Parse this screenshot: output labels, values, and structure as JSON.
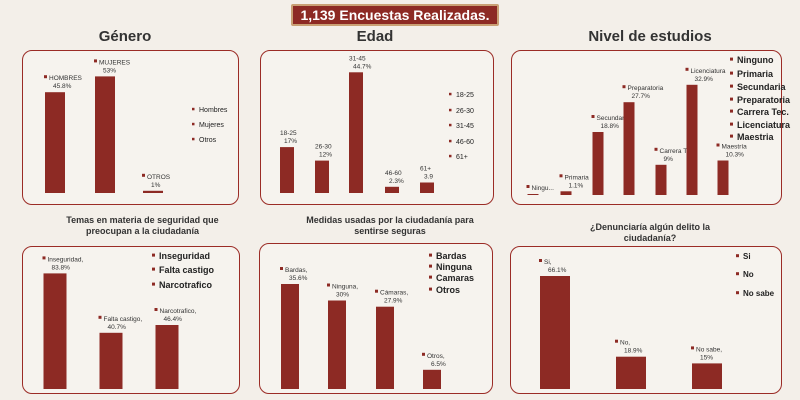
{
  "banner": "1,139 Encuestas Realizadas.",
  "titles": {
    "genero": "Género",
    "edad": "Edad",
    "estudios": "Nivel de estudios",
    "temas": "Temas en materia de seguridad que preocupan a la ciudadanía",
    "medidas": "Medidas usadas por la ciudadanía para sentirse seguras",
    "denuncia": "¿Denunciaría algún delito la ciudadanía?"
  },
  "colors": {
    "bar": "#8d2a24",
    "frame": "#9b2c26",
    "banner_border": "#c9a074"
  },
  "chart_data": [
    {
      "id": "genero",
      "type": "bar",
      "title": "Género",
      "categories": [
        "HOMBRES",
        "MUJERES",
        "OTROS"
      ],
      "values": [
        45.8,
        53,
        1
      ],
      "value_labels": [
        "45.8%",
        "53%",
        "1%"
      ],
      "legend": [
        "Hombres",
        "Mujeres",
        "Otros"
      ],
      "legend_position": "right"
    },
    {
      "id": "edad",
      "type": "bar",
      "title": "Edad",
      "categories": [
        "18-25",
        "26-30",
        "31-45",
        "46-60",
        "61+"
      ],
      "values": [
        17,
        12,
        44.7,
        2.3,
        3.9
      ],
      "value_labels": [
        "17%",
        "12%",
        "44.7%",
        "2.3%",
        "3.9"
      ],
      "legend": [
        "18-25",
        "26-30",
        "31-45",
        "46-60",
        "61+"
      ],
      "legend_position": "right"
    },
    {
      "id": "estudios",
      "type": "bar",
      "title": "Nivel de estudios",
      "categories": [
        "Ningu...",
        "Primaria",
        "Secundaria",
        "Preparatoria",
        "Carrera Tec.",
        "Licenciatura",
        "Maestría"
      ],
      "values": [
        0.3,
        1.1,
        18.8,
        27.7,
        9,
        32.9,
        10.3
      ],
      "value_labels": [
        "",
        "1.1%",
        "18.8%",
        "27.7%",
        "9%",
        "32.9%",
        "10.3%"
      ],
      "legend": [
        "Ninguno",
        "Primaria",
        "Secundaria",
        "Preparatoria",
        "Carrera Tec.",
        "Licenciatura",
        "Maestria"
      ],
      "legend_position": "right"
    },
    {
      "id": "temas",
      "type": "bar",
      "title": "Temas en materia de seguridad que preocupan a la ciudadanía",
      "categories": [
        "Inseguridad,",
        "Falta castigo,",
        "Narcotrafico,"
      ],
      "values": [
        83.8,
        40.7,
        46.4
      ],
      "value_labels": [
        "83.8%",
        "40.7%",
        "46.4%"
      ],
      "legend": [
        "Inseguridad",
        "Falta castigo",
        "Narcotrafico"
      ],
      "legend_position": "top-right"
    },
    {
      "id": "medidas",
      "type": "bar",
      "title": "Medidas usadas por la ciudadanía para sentirse seguras",
      "categories": [
        "Bardas,",
        "Ninguna,",
        "Cámaras,",
        "Otros,"
      ],
      "values": [
        35.6,
        30,
        27.9,
        6.5
      ],
      "value_labels": [
        "35.6%",
        "30%",
        "27.9%",
        "6.5%"
      ],
      "legend": [
        "Bardas",
        "Ninguna",
        "Camaras",
        "Otros"
      ],
      "legend_position": "top-right"
    },
    {
      "id": "denuncia",
      "type": "bar",
      "title": "¿Denunciaría algún delito la ciudadanía?",
      "categories": [
        "Si,",
        "No,",
        "No sabe,"
      ],
      "values": [
        66.1,
        18.9,
        15
      ],
      "value_labels": [
        "66.1%",
        "18.9%",
        "15%"
      ],
      "legend": [
        "Si",
        "No",
        "No sabe"
      ],
      "legend_position": "top-right"
    }
  ]
}
